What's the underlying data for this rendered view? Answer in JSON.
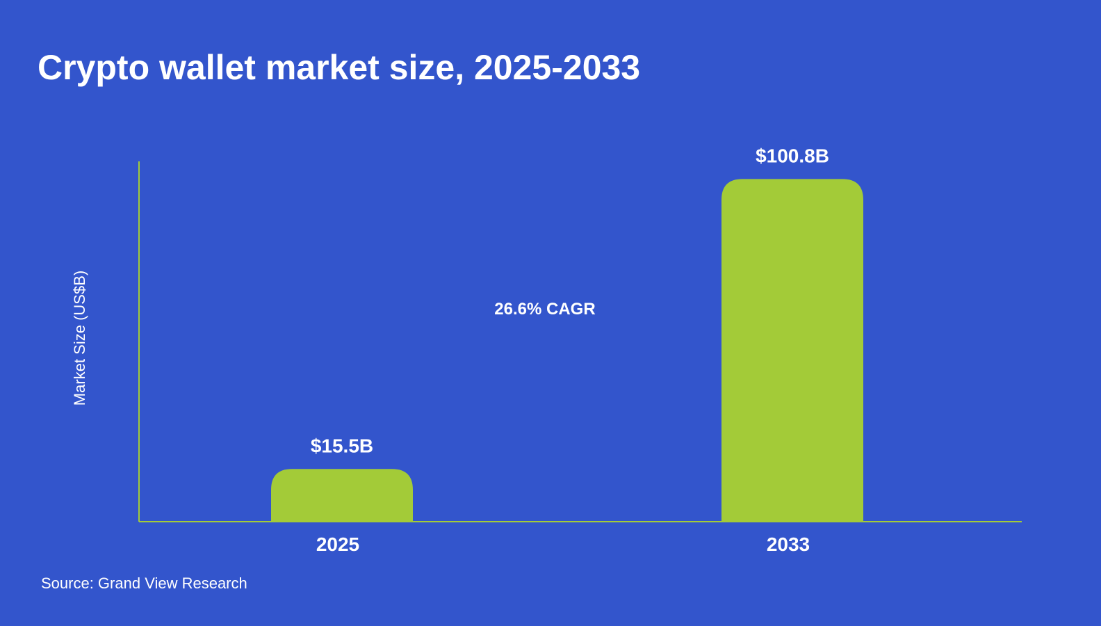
{
  "colors": {
    "background": "#3355cc",
    "bar": "#a3cb38",
    "axis": "#a3cb38",
    "text": "#ffffff"
  },
  "chart_data": {
    "type": "bar",
    "title": "Crypto wallet market size, 2025-2033",
    "ylabel": "Market Size (US$B)",
    "xlabel": "",
    "categories": [
      "2025",
      "2033"
    ],
    "values": [
      15.5,
      100.8
    ],
    "value_labels": [
      "$15.5B",
      "$100.8B"
    ],
    "ylim": [
      0,
      106
    ],
    "grid": false,
    "annotation": "26.6% CAGR",
    "source": "Source: Grand View Research"
  }
}
